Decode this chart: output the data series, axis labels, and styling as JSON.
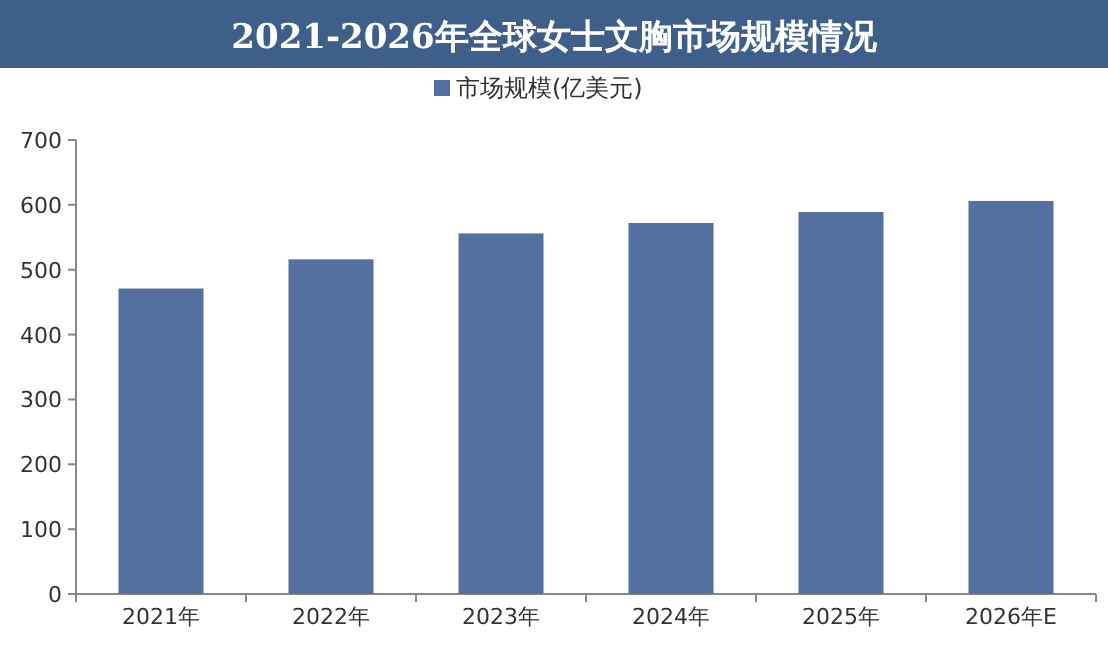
{
  "chart_data": {
    "type": "bar",
    "title": "2021-2026年全球女士文胸市场规模情况",
    "categories": [
      "2021年",
      "2022年",
      "2023年",
      "2024年",
      "2025年",
      "2026年E"
    ],
    "series": [
      {
        "name": "市场规模(亿美元)",
        "color": "#5470a0",
        "values": [
          471,
          516,
          556,
          572,
          589,
          606
        ]
      }
    ],
    "ylim": [
      0,
      700
    ],
    "yticks": [
      0,
      100,
      200,
      300,
      400,
      500,
      600,
      700
    ],
    "legend": "top"
  }
}
